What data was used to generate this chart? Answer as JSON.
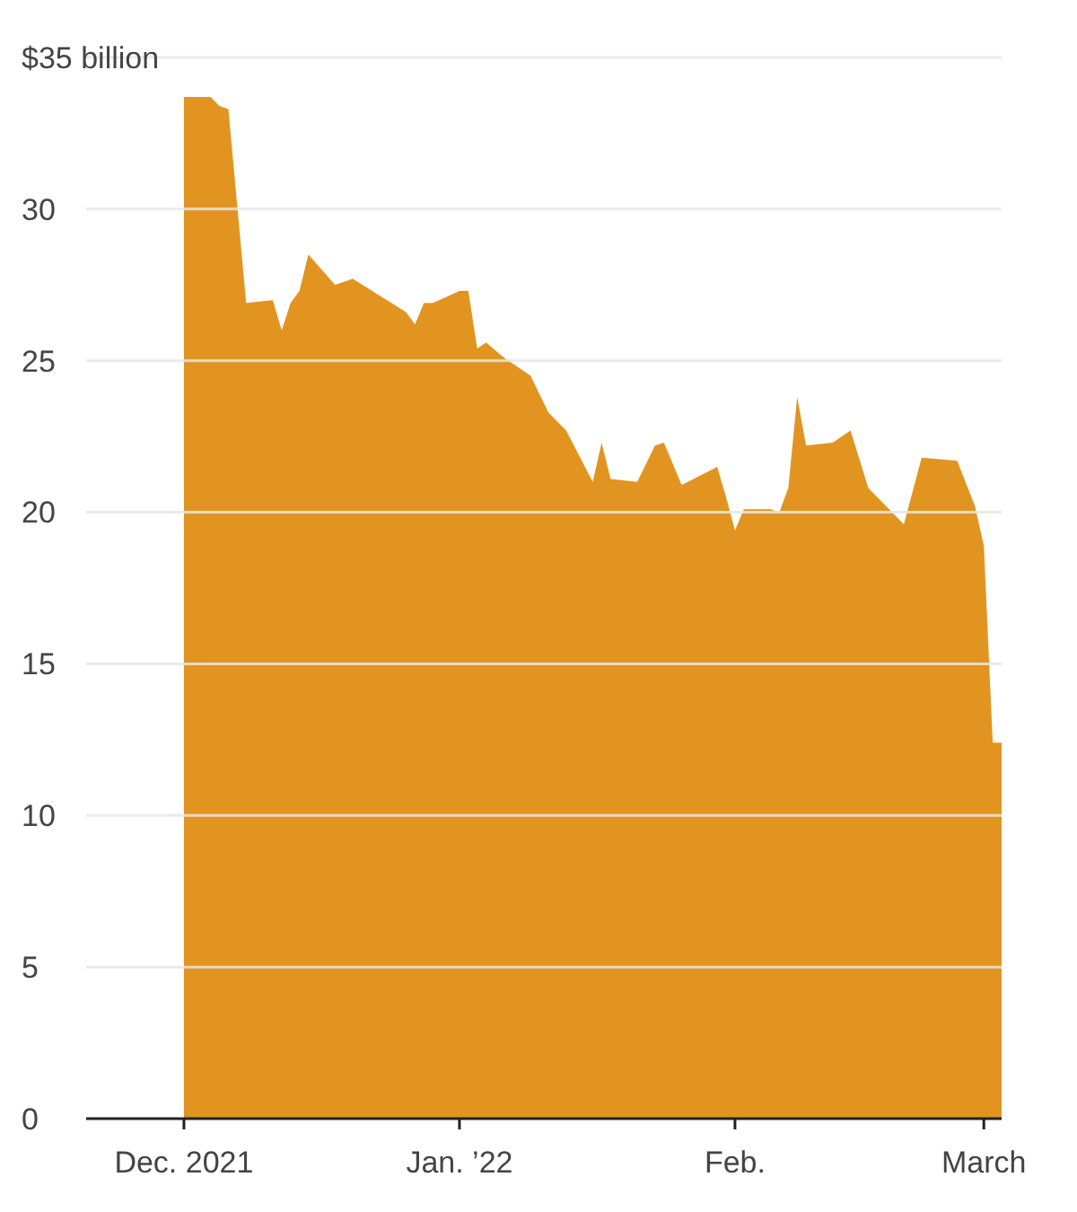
{
  "chart_data": {
    "type": "area",
    "color": "#e29421",
    "x": [
      "2021-12-01",
      "2021-12-04",
      "2021-12-05",
      "2021-12-06",
      "2021-12-08",
      "2021-12-11",
      "2021-12-12",
      "2021-12-13",
      "2021-12-14",
      "2021-12-15",
      "2021-12-18",
      "2021-12-20",
      "2021-12-26",
      "2021-12-27",
      "2021-12-28",
      "2021-12-29",
      "2022-01-01",
      "2022-01-02",
      "2022-01-03",
      "2022-01-04",
      "2022-01-06",
      "2022-01-09",
      "2022-01-11",
      "2022-01-13",
      "2022-01-16",
      "2022-01-17",
      "2022-01-18",
      "2022-01-21",
      "2022-01-23",
      "2022-01-24",
      "2022-01-26",
      "2022-01-30",
      "2022-01-31",
      "2022-02-01",
      "2022-02-02",
      "2022-02-05",
      "2022-02-06",
      "2022-02-07",
      "2022-02-08",
      "2022-02-09",
      "2022-02-12",
      "2022-02-14",
      "2022-02-16",
      "2022-02-18",
      "2022-02-20",
      "2022-02-21",
      "2022-02-22",
      "2022-02-26",
      "2022-02-28",
      "2022-03-01",
      "2022-03-02",
      "2022-03-03"
    ],
    "values": [
      33.7,
      33.7,
      33.4,
      33.3,
      26.9,
      27.0,
      26.0,
      26.9,
      27.3,
      28.5,
      27.5,
      27.7,
      26.6,
      26.2,
      26.9,
      26.9,
      27.3,
      27.3,
      25.4,
      25.6,
      25.1,
      24.5,
      23.3,
      22.7,
      21.0,
      22.3,
      21.1,
      21.0,
      22.2,
      22.3,
      20.9,
      21.5,
      20.5,
      19.4,
      20.1,
      20.1,
      20.0,
      20.8,
      23.8,
      22.2,
      22.3,
      22.7,
      20.8,
      20.2,
      19.6,
      20.7,
      21.8,
      21.7,
      20.2,
      18.9,
      12.4,
      12.4
    ],
    "xlim": [
      "2021-11-20",
      "2022-03-03"
    ],
    "xticks": [
      {
        "value": "2021-12-01",
        "label": "Dec. 2021"
      },
      {
        "value": "2022-01-01",
        "label": "Jan. ’22"
      },
      {
        "value": "2022-02-01",
        "label": "Feb."
      },
      {
        "value": "2022-03-01",
        "label": "March"
      }
    ],
    "ylim": [
      0,
      35
    ],
    "yticks": [
      0,
      5,
      10,
      15,
      20,
      25,
      30,
      {
        "value": 35,
        "label": "$35 billion"
      }
    ],
    "grid": "y"
  }
}
